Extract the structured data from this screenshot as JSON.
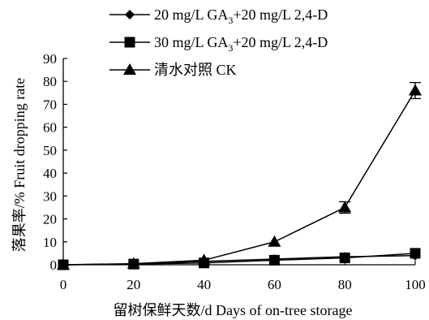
{
  "chart_data": {
    "type": "line",
    "title": "",
    "xlabel": "留树保鲜天数/d Days of on-tree storage",
    "ylabel": "落果率/% Fruit dropping rate",
    "x": [
      0,
      20,
      40,
      60,
      80,
      100
    ],
    "xlim": [
      0,
      100
    ],
    "ylim": [
      0,
      90
    ],
    "xticks": [
      "0",
      "20",
      "40",
      "60",
      "80",
      "100"
    ],
    "yticks": [
      "0",
      "10",
      "20",
      "30",
      "40",
      "50",
      "60",
      "70",
      "80",
      "90"
    ],
    "grid": false,
    "legend_position": "top",
    "series": [
      {
        "name_parts": [
          "20 mg/L GA",
          "3",
          "+20 mg/L 2,4-D"
        ],
        "marker": "diamond",
        "values": [
          0,
          0.3,
          1.5,
          2.5,
          3.5,
          4
        ]
      },
      {
        "name_parts": [
          "30 mg/L GA",
          "3",
          "+20 mg/L 2,4-D"
        ],
        "marker": "square",
        "values": [
          0,
          0.3,
          0.8,
          2,
          3,
          5
        ]
      },
      {
        "name_parts": [
          "清水对照  CK"
        ],
        "marker": "triangle",
        "values": [
          0,
          0.5,
          2,
          10,
          25,
          76
        ],
        "errors": [
          0,
          0,
          0,
          0,
          2.5,
          3.5
        ]
      }
    ]
  }
}
